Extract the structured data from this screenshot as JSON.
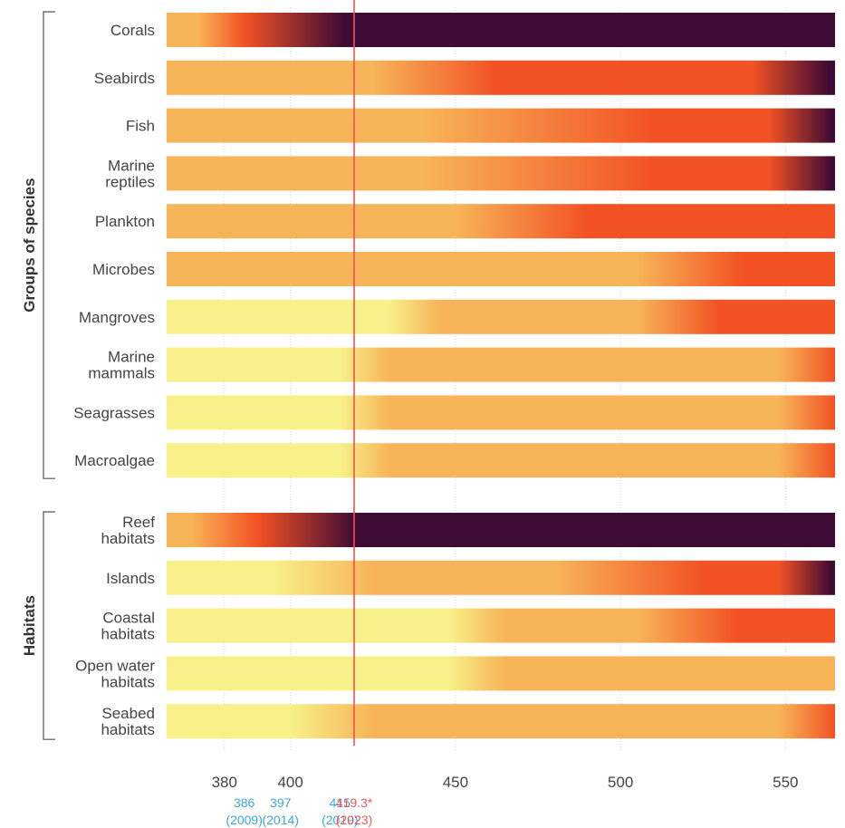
{
  "colors": {
    "undetectable": "#f8f088",
    "moderate": "#f8b458",
    "high": "#f25224",
    "very_high": "#3e0b34",
    "reference_line": "#f25050",
    "reference_label": "#e85a5a",
    "past_label": "#3aa8d8",
    "text": "#444444",
    "grid": "#d6d6d6"
  },
  "chart_data": {
    "type": "heatmap",
    "xlabel": "",
    "xlim": [
      362.5,
      565
    ],
    "xticks": [
      380,
      400,
      450,
      500,
      550
    ],
    "reference_markers": [
      {
        "value": 386,
        "label": "386",
        "year": "(2009)",
        "kind": "past"
      },
      {
        "value": 397,
        "label": "397",
        "year": "(2014)",
        "kind": "past"
      },
      {
        "value": 415,
        "label": "415",
        "year": "(2019)",
        "kind": "past"
      },
      {
        "value": 419.3,
        "label": "419.3*",
        "year": "(2023)",
        "kind": "current"
      }
    ],
    "groups": [
      {
        "title": "Groups of species",
        "rows": [
          {
            "label": "Corals",
            "gradient": [
              [
                362.5,
                "#f8b458"
              ],
              [
                372,
                "#f8b458"
              ],
              [
                386,
                "#f25224"
              ],
              [
                416,
                "#3e0b34"
              ],
              [
                565,
                "#3e0b34"
              ]
            ]
          },
          {
            "label": "Seabirds",
            "gradient": [
              [
                362.5,
                "#f8b458"
              ],
              [
                425,
                "#f8b458"
              ],
              [
                462,
                "#f25224"
              ],
              [
                540,
                "#f25224"
              ],
              [
                563,
                "#3e0b34"
              ]
            ]
          },
          {
            "label": "Fish",
            "gradient": [
              [
                362.5,
                "#f8b458"
              ],
              [
                440,
                "#f8b458"
              ],
              [
                510,
                "#f25224"
              ],
              [
                545,
                "#f25224"
              ],
              [
                564,
                "#3e0b34"
              ]
            ]
          },
          {
            "label": "Marine reptiles",
            "gradient": [
              [
                362.5,
                "#f8b458"
              ],
              [
                440,
                "#f8b458"
              ],
              [
                510,
                "#f25224"
              ],
              [
                545,
                "#f25224"
              ],
              [
                564,
                "#3e0b34"
              ]
            ]
          },
          {
            "label": "Plankton",
            "gradient": [
              [
                362.5,
                "#f8b458"
              ],
              [
                450,
                "#f8b458"
              ],
              [
                490,
                "#f25224"
              ],
              [
                565,
                "#f25224"
              ]
            ]
          },
          {
            "label": "Microbes",
            "gradient": [
              [
                362.5,
                "#f8b458"
              ],
              [
                505,
                "#f8b458"
              ],
              [
                537,
                "#f25224"
              ],
              [
                565,
                "#f25224"
              ]
            ]
          },
          {
            "label": "Mangroves",
            "gradient": [
              [
                362.5,
                "#f8f088"
              ],
              [
                430,
                "#f8f088"
              ],
              [
                445,
                "#f8b458"
              ],
              [
                505,
                "#f8b458"
              ],
              [
                530,
                "#f25224"
              ],
              [
                565,
                "#f25224"
              ]
            ]
          },
          {
            "label": "Marine mammals",
            "gradient": [
              [
                362.5,
                "#f8f088"
              ],
              [
                415,
                "#f8f088"
              ],
              [
                430,
                "#f8b458"
              ],
              [
                548,
                "#f8b458"
              ],
              [
                565,
                "#f25224"
              ]
            ]
          },
          {
            "label": "Seagrasses",
            "gradient": [
              [
                362.5,
                "#f8f088"
              ],
              [
                415,
                "#f8f088"
              ],
              [
                430,
                "#f8b458"
              ],
              [
                548,
                "#f8b458"
              ],
              [
                565,
                "#f25224"
              ]
            ]
          },
          {
            "label": "Macroalgae",
            "gradient": [
              [
                362.5,
                "#f8f088"
              ],
              [
                415,
                "#f8f088"
              ],
              [
                430,
                "#f8b458"
              ],
              [
                548,
                "#f8b458"
              ],
              [
                565,
                "#f25224"
              ]
            ]
          }
        ]
      },
      {
        "title": "Habitats",
        "rows": [
          {
            "label": "Reef habitats",
            "gradient": [
              [
                362.5,
                "#f8b458"
              ],
              [
                370,
                "#f8b458"
              ],
              [
                390,
                "#f25224"
              ],
              [
                420,
                "#3e0b34"
              ],
              [
                565,
                "#3e0b34"
              ]
            ]
          },
          {
            "label": "Islands",
            "gradient": [
              [
                362.5,
                "#f8f088"
              ],
              [
                395,
                "#f8f088"
              ],
              [
                425,
                "#f8b458"
              ],
              [
                480,
                "#f8b458"
              ],
              [
                525,
                "#f25224"
              ],
              [
                548,
                "#f25224"
              ],
              [
                564,
                "#3e0b34"
              ]
            ]
          },
          {
            "label": "Coastal habitats",
            "gradient": [
              [
                362.5,
                "#f8f088"
              ],
              [
                448,
                "#f8f088"
              ],
              [
                465,
                "#f8b458"
              ],
              [
                505,
                "#f8b458"
              ],
              [
                535,
                "#f25224"
              ],
              [
                565,
                "#f25224"
              ]
            ]
          },
          {
            "label": "Open water habitats",
            "gradient": [
              [
                362.5,
                "#f8f088"
              ],
              [
                448,
                "#f8f088"
              ],
              [
                465,
                "#f8b458"
              ],
              [
                565,
                "#f8b458"
              ]
            ]
          },
          {
            "label": "Seabed habitats",
            "gradient": [
              [
                362.5,
                "#f8f088"
              ],
              [
                400,
                "#f8f088"
              ],
              [
                425,
                "#f8b458"
              ],
              [
                548,
                "#f8b458"
              ],
              [
                565,
                "#f25224"
              ]
            ]
          }
        ]
      }
    ]
  }
}
